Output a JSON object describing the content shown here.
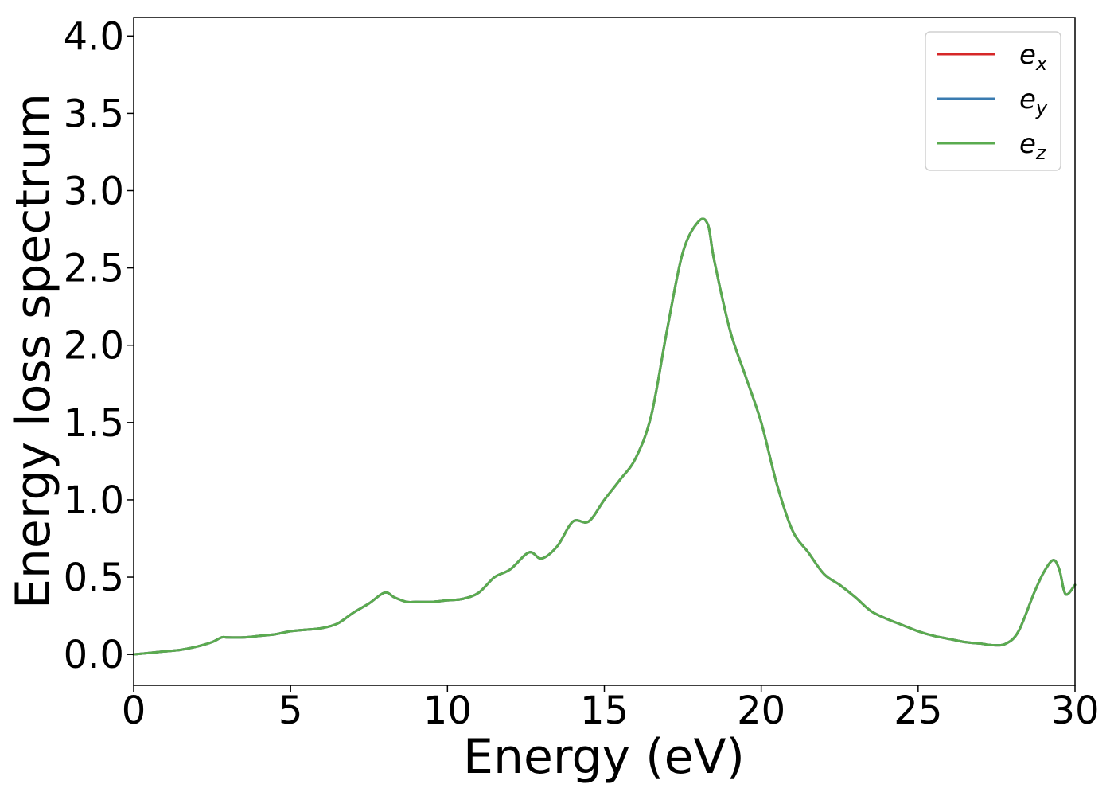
{
  "chart_data": {
    "type": "line",
    "title": "",
    "xlabel": "Energy (eV)",
    "ylabel": "Energy loss spectrum",
    "xlim": [
      0,
      30
    ],
    "ylim": [
      -0.2,
      4.12
    ],
    "xticks": [
      0,
      5,
      10,
      15,
      20,
      25,
      30
    ],
    "xtick_labels": [
      "0",
      "5",
      "10",
      "15",
      "20",
      "25",
      "30"
    ],
    "yticks": [
      0.0,
      0.5,
      1.0,
      1.5,
      2.0,
      2.5,
      3.0,
      3.5,
      4.0
    ],
    "ytick_labels": [
      "0.0",
      "0.5",
      "1.0",
      "1.5",
      "2.0",
      "2.5",
      "3.0",
      "3.5",
      "4.0"
    ],
    "grid": false,
    "legend_position": "top-right",
    "x": [
      0,
      0.5,
      1,
      1.5,
      2,
      2.5,
      2.8,
      3,
      3.5,
      4,
      4.5,
      5,
      5.5,
      6,
      6.5,
      7,
      7.5,
      8,
      8.3,
      8.7,
      9,
      9.5,
      10,
      10.5,
      11,
      11.5,
      12,
      12.6,
      13,
      13.5,
      14,
      14.5,
      15,
      15.5,
      16,
      16.5,
      17,
      17.5,
      18,
      18.3,
      18.5,
      19,
      19.5,
      20,
      20.5,
      21,
      21.5,
      22,
      22.5,
      23,
      23.5,
      24,
      24.5,
      25,
      25.5,
      26,
      26.5,
      27,
      27.4,
      27.8,
      28.2,
      28.7,
      29,
      29.3,
      29.5,
      29.7,
      30
    ],
    "series": [
      {
        "name": "e_x",
        "label_base": "e",
        "label_sub": "x",
        "color": "#d62728",
        "values": [
          0.0,
          0.01,
          0.02,
          0.03,
          0.05,
          0.08,
          0.11,
          0.11,
          0.11,
          0.12,
          0.13,
          0.15,
          0.16,
          0.17,
          0.2,
          0.27,
          0.33,
          0.4,
          0.37,
          0.34,
          0.34,
          0.34,
          0.35,
          0.36,
          0.4,
          0.5,
          0.55,
          0.66,
          0.62,
          0.7,
          0.86,
          0.86,
          1.0,
          1.13,
          1.27,
          1.55,
          2.1,
          2.6,
          2.8,
          2.78,
          2.55,
          2.1,
          1.8,
          1.5,
          1.1,
          0.8,
          0.66,
          0.52,
          0.45,
          0.37,
          0.28,
          0.23,
          0.19,
          0.15,
          0.12,
          0.1,
          0.08,
          0.07,
          0.06,
          0.07,
          0.15,
          0.4,
          0.53,
          0.61,
          0.55,
          0.39,
          0.45
        ]
      },
      {
        "name": "e_y",
        "label_base": "e",
        "label_sub": "y",
        "color": "#3a7bb0",
        "values": [
          0.0,
          0.01,
          0.02,
          0.03,
          0.05,
          0.08,
          0.11,
          0.11,
          0.11,
          0.12,
          0.13,
          0.15,
          0.16,
          0.17,
          0.2,
          0.27,
          0.33,
          0.4,
          0.37,
          0.34,
          0.34,
          0.34,
          0.35,
          0.36,
          0.4,
          0.5,
          0.55,
          0.66,
          0.62,
          0.7,
          0.86,
          0.86,
          1.0,
          1.13,
          1.27,
          1.55,
          2.1,
          2.6,
          2.8,
          2.78,
          2.55,
          2.1,
          1.8,
          1.5,
          1.1,
          0.8,
          0.66,
          0.52,
          0.45,
          0.37,
          0.28,
          0.23,
          0.19,
          0.15,
          0.12,
          0.1,
          0.08,
          0.07,
          0.06,
          0.07,
          0.15,
          0.4,
          0.53,
          0.61,
          0.55,
          0.39,
          0.45
        ]
      },
      {
        "name": "e_z",
        "label_base": "e",
        "label_sub": "z",
        "color": "#5aab4f",
        "values": [
          0.0,
          0.01,
          0.02,
          0.03,
          0.05,
          0.08,
          0.11,
          0.11,
          0.11,
          0.12,
          0.13,
          0.15,
          0.16,
          0.17,
          0.2,
          0.27,
          0.33,
          0.4,
          0.37,
          0.34,
          0.34,
          0.34,
          0.35,
          0.36,
          0.4,
          0.5,
          0.55,
          0.66,
          0.62,
          0.7,
          0.86,
          0.86,
          1.0,
          1.13,
          1.27,
          1.55,
          2.1,
          2.6,
          2.8,
          2.78,
          2.55,
          2.1,
          1.8,
          1.5,
          1.1,
          0.8,
          0.66,
          0.52,
          0.45,
          0.37,
          0.28,
          0.23,
          0.19,
          0.15,
          0.12,
          0.1,
          0.08,
          0.07,
          0.06,
          0.07,
          0.15,
          0.4,
          0.53,
          0.61,
          0.55,
          0.39,
          0.45
        ]
      }
    ]
  }
}
